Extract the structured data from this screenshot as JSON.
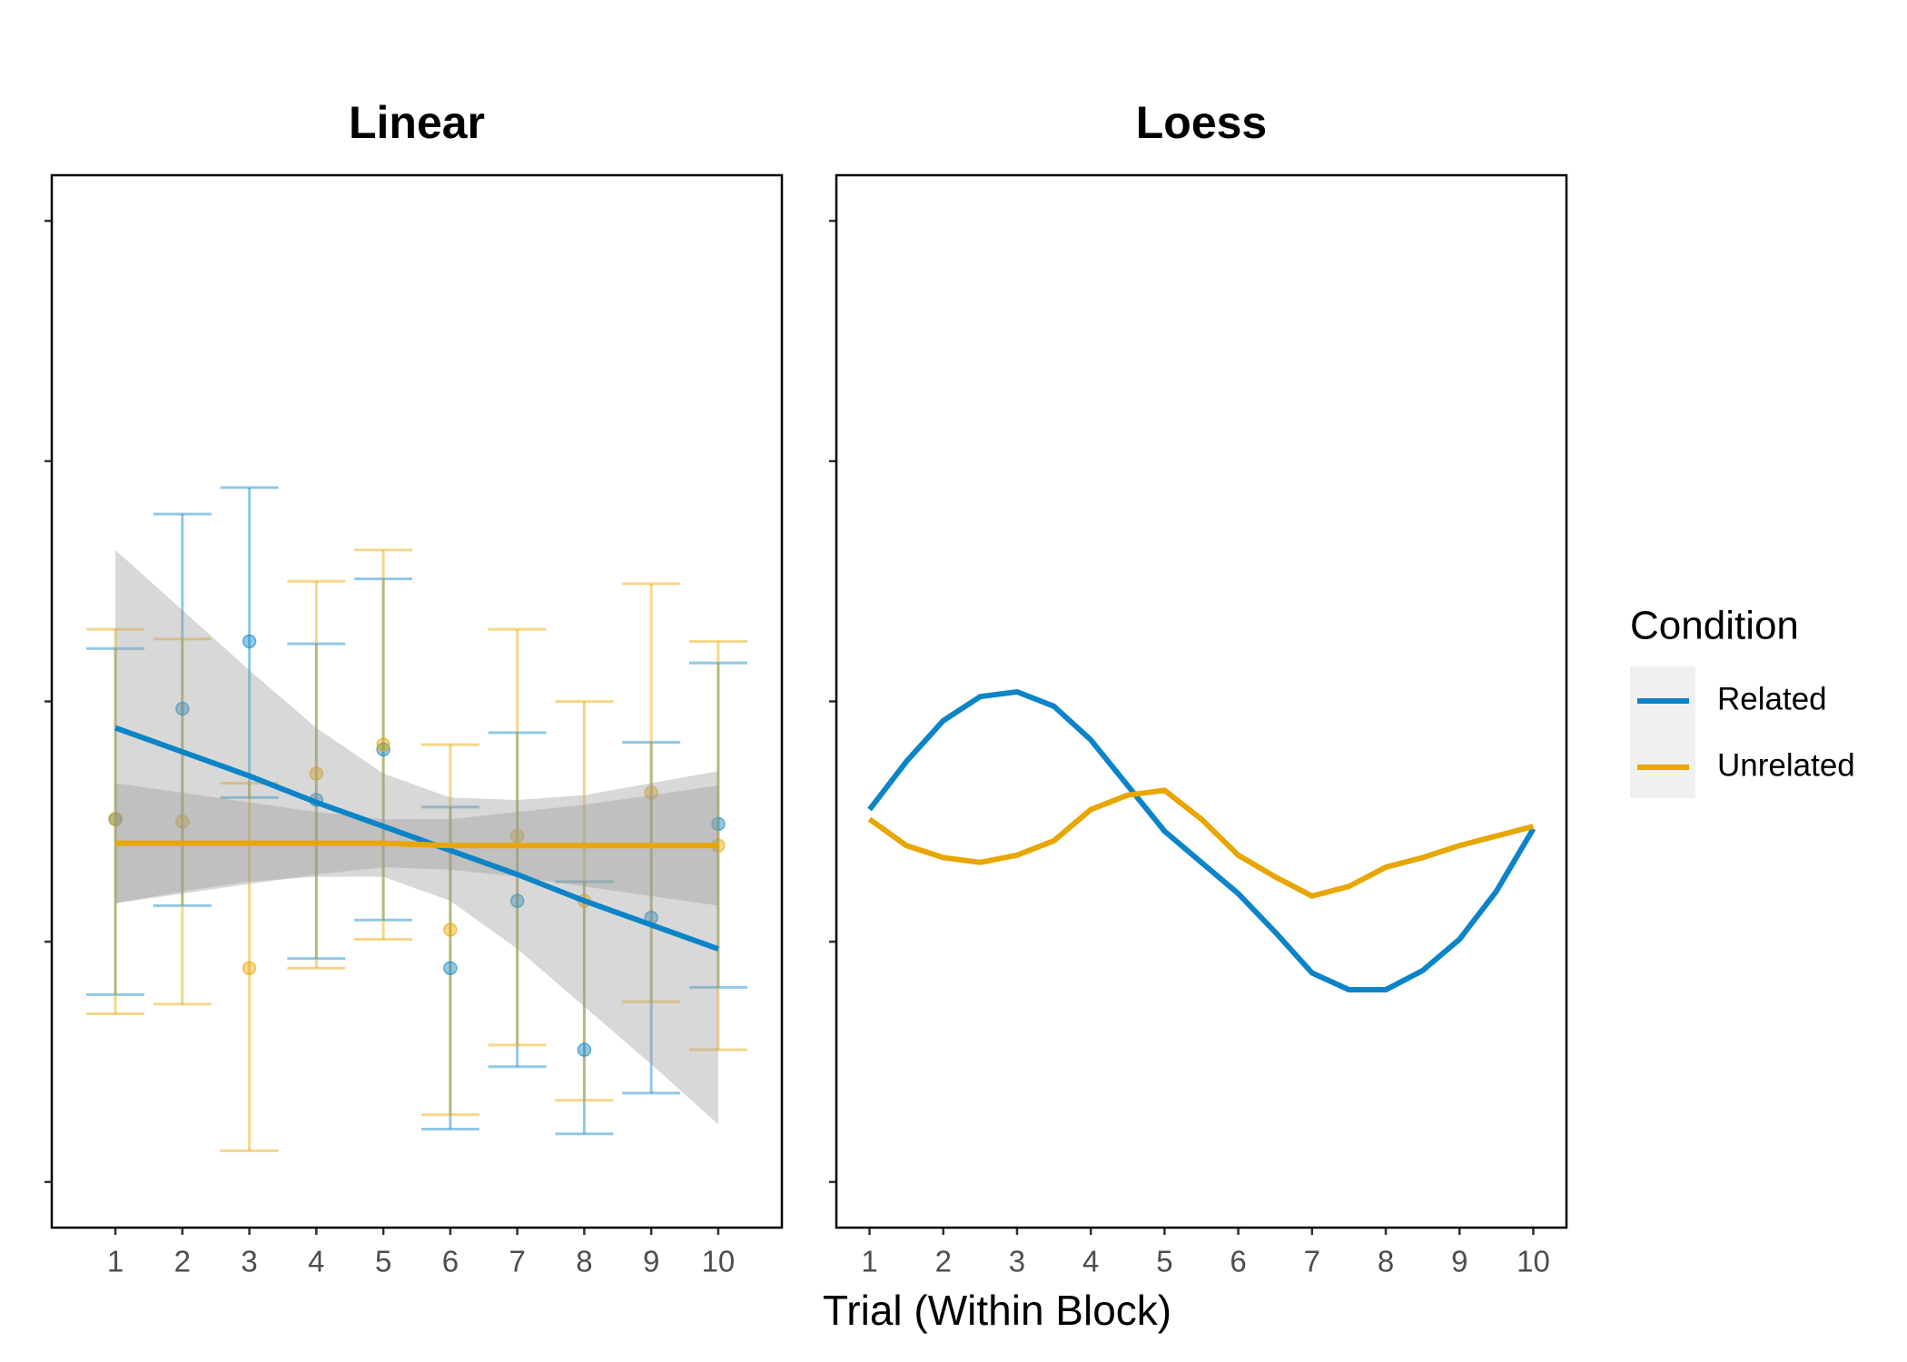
{
  "chart_data": [
    {
      "type": "errorbar",
      "title": "Linear",
      "x": [
        1,
        2,
        3,
        4,
        5,
        6,
        7,
        8,
        9,
        10
      ],
      "xlim": [
        0.05,
        10.95
      ],
      "xticks": [
        1,
        2,
        3,
        4,
        5,
        6,
        7,
        8,
        9,
        10
      ],
      "ylim": [
        0.81,
        5.19
      ],
      "yticks": [
        1,
        2,
        3,
        4,
        5
      ],
      "series": [
        {
          "name": "Related",
          "color": "#0b84c8",
          "values": [
            2.51,
            2.97,
            3.25,
            2.59,
            2.8,
            1.89,
            2.17,
            1.55,
            2.1,
            2.49
          ],
          "lower": [
            1.78,
            2.15,
            2.6,
            1.93,
            2.09,
            1.22,
            1.48,
            1.2,
            1.37,
            1.81
          ],
          "upper": [
            3.22,
            3.78,
            3.89,
            3.24,
            3.51,
            2.56,
            2.87,
            2.25,
            2.83,
            3.16
          ],
          "fit": [
            2.89,
            2.79,
            2.69,
            2.58,
            2.48,
            2.38,
            2.28,
            2.17,
            2.07,
            1.97
          ],
          "band_lower": [
            2.16,
            2.21,
            2.25,
            2.27,
            2.27,
            2.17,
            1.97,
            1.73,
            1.49,
            1.24
          ],
          "band_upper": [
            3.63,
            3.38,
            3.13,
            2.89,
            2.7,
            2.6,
            2.59,
            2.61,
            2.66,
            2.71
          ]
        },
        {
          "name": "Unrelated",
          "color": "#e8a600",
          "values": [
            2.51,
            2.5,
            1.89,
            2.7,
            2.82,
            2.05,
            2.44,
            2.17,
            2.62,
            2.4
          ],
          "lower": [
            1.7,
            1.74,
            1.13,
            1.89,
            2.01,
            1.28,
            1.57,
            1.34,
            1.75,
            1.55
          ],
          "upper": [
            3.3,
            3.26,
            2.66,
            3.5,
            3.63,
            2.82,
            3.3,
            3.0,
            3.49,
            3.25
          ],
          "fit": [
            2.41,
            2.41,
            2.41,
            2.41,
            2.41,
            2.4,
            2.4,
            2.4,
            2.4,
            2.4
          ],
          "band_lower": [
            2.16,
            2.2,
            2.24,
            2.28,
            2.31,
            2.3,
            2.27,
            2.23,
            2.19,
            2.15
          ],
          "band_upper": [
            2.66,
            2.62,
            2.58,
            2.54,
            2.51,
            2.51,
            2.54,
            2.57,
            2.61,
            2.65
          ]
        }
      ]
    },
    {
      "type": "line",
      "title": "Loess",
      "x": [
        1,
        1.5,
        2,
        2.5,
        3,
        3.5,
        4,
        4.5,
        5,
        5.5,
        6,
        6.5,
        7,
        7.5,
        8,
        8.5,
        9,
        9.5,
        10
      ],
      "xlim": [
        0.55,
        10.45
      ],
      "xticks": [
        1,
        2,
        3,
        4,
        5,
        6,
        7,
        8,
        9,
        10
      ],
      "ylim": [
        0.81,
        5.19
      ],
      "yticks": [
        1,
        2,
        3,
        4,
        5
      ],
      "series": [
        {
          "name": "Related",
          "color": "#0b84c8",
          "values": [
            2.55,
            2.75,
            2.92,
            3.02,
            3.04,
            2.98,
            2.84,
            2.65,
            2.46,
            2.33,
            2.2,
            2.04,
            1.87,
            1.8,
            1.8,
            1.88,
            2.01,
            2.21,
            2.47
          ]
        },
        {
          "name": "Unrelated",
          "color": "#e8a600",
          "values": [
            2.51,
            2.4,
            2.35,
            2.33,
            2.36,
            2.42,
            2.55,
            2.61,
            2.63,
            2.51,
            2.36,
            2.27,
            2.19,
            2.23,
            2.31,
            2.35,
            2.4,
            2.44,
            2.48
          ]
        }
      ]
    }
  ],
  "xlabel": "Trial (Within Block)",
  "legend_title": "Condition"
}
